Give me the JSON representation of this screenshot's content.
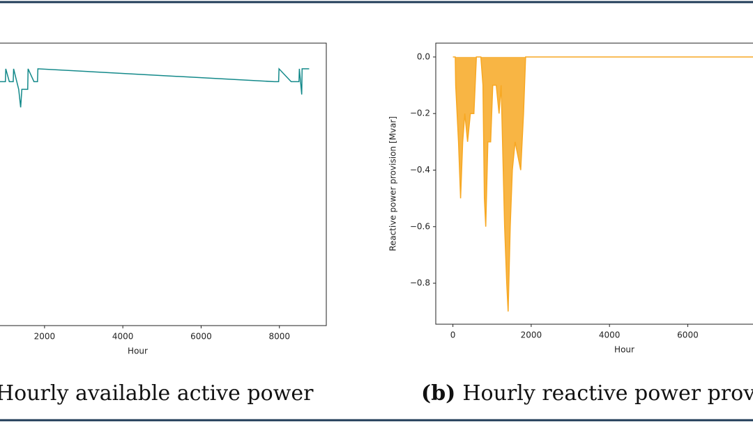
{
  "chart_data": [
    {
      "type": "line",
      "caption": {
        "text": "Hourly available active power"
      },
      "xlabel": "Hour",
      "xlim": [
        -438,
        9198
      ],
      "xticks": [
        2000,
        4000,
        6000,
        8000
      ],
      "ylim": [
        0,
        1.1
      ],
      "series": [
        {
          "color": "#13898a",
          "x": [
            0,
            860,
            1000,
            1010,
            1100,
            1200,
            1210,
            1340,
            1390,
            1420,
            1570,
            1580,
            1730,
            1820,
            1830,
            7870,
            7980,
            7990,
            8300,
            8500,
            8510,
            8570,
            8580,
            8760
          ],
          "values": [
            1.0,
            0.95,
            0.95,
            1.0,
            0.95,
            0.95,
            1.0,
            0.92,
            0.85,
            0.92,
            0.92,
            1.0,
            0.95,
            0.95,
            1.0,
            0.95,
            0.95,
            1.0,
            0.95,
            0.95,
            1.0,
            0.9,
            1.0,
            1.0
          ]
        }
      ]
    },
    {
      "type": "line",
      "caption": {
        "label": "(b)",
        "text": "Hourly reactive power provision"
      },
      "xlabel": "Hour",
      "ylabel": "Reactive power provision [Mvar]",
      "xlim": [
        -438,
        9198
      ],
      "xticks": [
        0,
        2000,
        4000,
        6000
      ],
      "ylim": [
        -0.945,
        0.049
      ],
      "yticks": [
        {
          "value": 0.0,
          "label": "0.0"
        },
        {
          "value": -0.2,
          "label": "−0.2"
        },
        {
          "value": -0.4,
          "label": "−0.4"
        },
        {
          "value": -0.6,
          "label": "−0.6"
        },
        {
          "value": -0.8,
          "label": "−0.8"
        }
      ],
      "series": [
        {
          "color": "#f7a823",
          "x": [
            0,
            60,
            71,
            143,
            196,
            250,
            304,
            375,
            446,
            536,
            600,
            714,
            768,
            804,
            839,
            893,
            964,
            1018,
            1107,
            1179,
            1232,
            1321,
            1375,
            1411,
            1464,
            1518,
            1589,
            1732,
            1804,
            1857,
            8760
          ],
          "values": [
            0,
            0,
            -0.1,
            -0.3,
            -0.5,
            -0.3,
            -0.2,
            -0.3,
            -0.2,
            -0.2,
            0,
            0,
            -0.1,
            -0.5,
            -0.6,
            -0.3,
            -0.3,
            -0.1,
            -0.1,
            -0.2,
            -0.1,
            -0.6,
            -0.8,
            -0.9,
            -0.6,
            -0.4,
            -0.3,
            -0.4,
            -0.2,
            0,
            0
          ]
        }
      ]
    }
  ]
}
